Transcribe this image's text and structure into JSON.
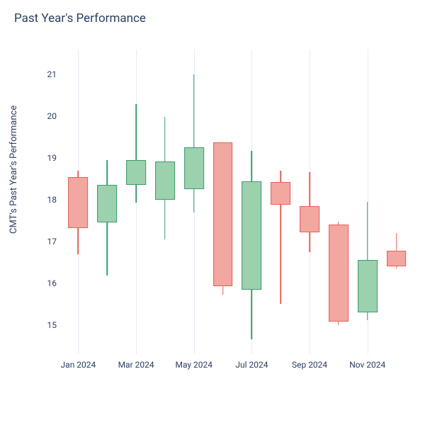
{
  "title": "Past Year's Performance",
  "ylabel": "CMT's Past Year's Performance",
  "chart": {
    "type": "candlestick",
    "background_color": "#ffffff",
    "grid_color": "#e5ecf6",
    "up_fill": "#9cd1ad",
    "up_line": "#3d9970",
    "down_fill": "#f2a7a0",
    "down_line": "#e06357",
    "title_fontsize": 17,
    "label_fontsize": 13,
    "tick_fontsize": 12,
    "ylim": [
      14.3,
      21.6
    ],
    "yticks": [
      15,
      16,
      17,
      18,
      19,
      20,
      21
    ],
    "xticks": [
      {
        "index": 0,
        "label": "Jan 2024"
      },
      {
        "index": 2,
        "label": "Mar 2024"
      },
      {
        "index": 4,
        "label": "May 2024"
      },
      {
        "index": 6,
        "label": "Jul 2024"
      },
      {
        "index": 8,
        "label": "Sep 2024"
      },
      {
        "index": 10,
        "label": "Nov 2024"
      }
    ],
    "candle_width_ratio": 0.68,
    "data": [
      {
        "open": 18.55,
        "high": 18.7,
        "low": 16.7,
        "close": 17.32
      },
      {
        "open": 17.45,
        "high": 18.95,
        "low": 16.18,
        "close": 18.35
      },
      {
        "open": 18.35,
        "high": 20.3,
        "low": 17.93,
        "close": 18.95
      },
      {
        "open": 18.0,
        "high": 19.98,
        "low": 17.05,
        "close": 18.92
      },
      {
        "open": 18.25,
        "high": 21.0,
        "low": 17.7,
        "close": 19.25
      },
      {
        "open": 19.38,
        "high": 19.38,
        "low": 15.72,
        "close": 15.93
      },
      {
        "open": 15.85,
        "high": 19.18,
        "low": 14.65,
        "close": 18.45
      },
      {
        "open": 18.42,
        "high": 18.7,
        "low": 15.5,
        "close": 17.88
      },
      {
        "open": 17.85,
        "high": 18.66,
        "low": 16.75,
        "close": 17.22
      },
      {
        "open": 17.4,
        "high": 17.48,
        "low": 15.0,
        "close": 15.08
      },
      {
        "open": 15.3,
        "high": 17.95,
        "low": 15.12,
        "close": 16.55
      },
      {
        "open": 16.78,
        "high": 17.2,
        "low": 16.35,
        "close": 16.4
      }
    ]
  }
}
